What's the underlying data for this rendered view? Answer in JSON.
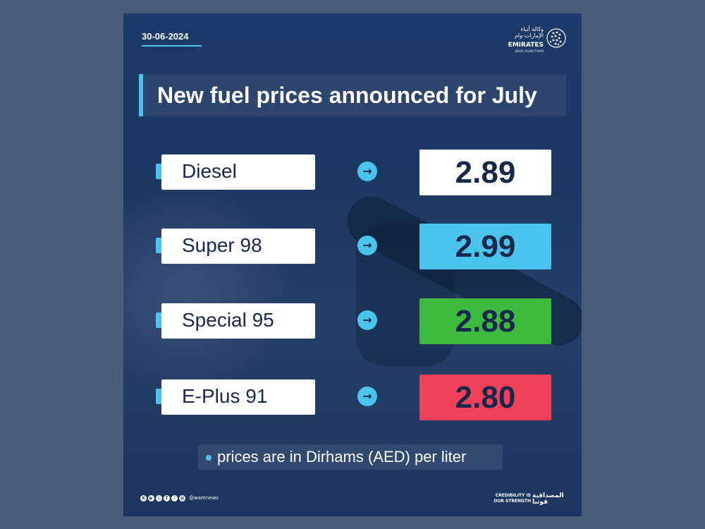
{
  "date": "30-06-2024",
  "logo": {
    "arabic": "وكالة أنباء الإمارات-وام",
    "name": "EMIRATES",
    "sub": "NEWS AGENCY-WAM"
  },
  "title": "New fuel prices announced for July",
  "rows": [
    {
      "fuel": "Diesel",
      "price": "2.89",
      "color": "#ffffff"
    },
    {
      "fuel": "Super 98",
      "price": "2.99",
      "color": "#4cc3ec"
    },
    {
      "fuel": "Special 95",
      "price": "2.88",
      "color": "#3dba3e"
    },
    {
      "fuel": "E-Plus 91",
      "price": "2.80",
      "color": "#f1405a"
    }
  ],
  "note": "prices are in Dirhams (AED) per liter",
  "footer": {
    "handle": "@wamnews",
    "slogan_en": [
      "CREDIBILITY IS",
      "OUR STRENGTH"
    ],
    "slogan_ar": [
      "المصداقية",
      "قوتنا"
    ]
  },
  "colors": {
    "accent": "#4cc3ec",
    "text_dark": "#17284a"
  }
}
